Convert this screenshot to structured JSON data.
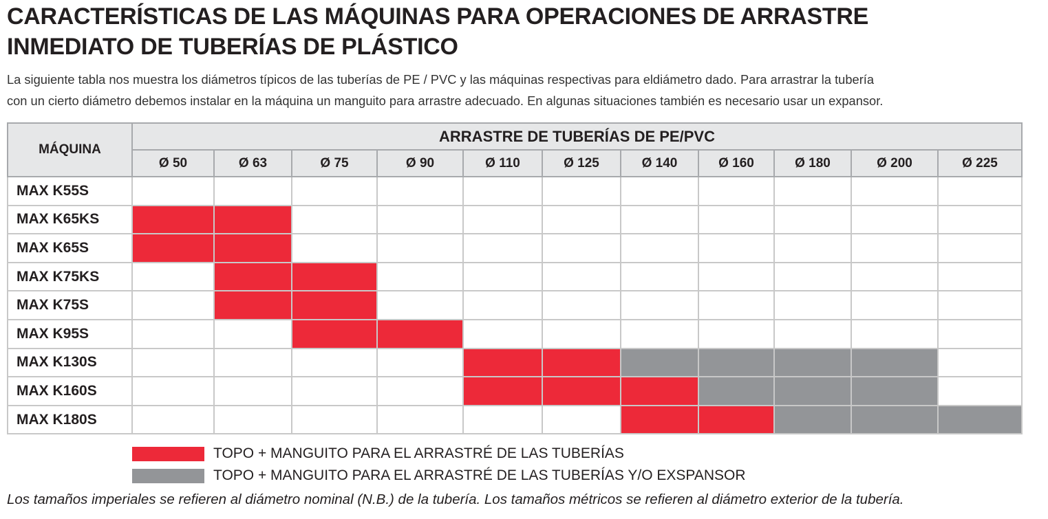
{
  "title_lines": [
    "CARACTERÍSTICAS DE LAS MÁQUINAS PARA OPERACIONES DE ARRASTRE",
    "INMEDIATO DE TUBERÍAS DE PLÁSTICO"
  ],
  "intro_lines": [
    "La siguiente tabla nos muestra los diámetros típicos de las tuberías de PE / PVC y las máquinas respectivas para eldiámetro dado. Para arrastrar la tubería",
    "con un cierto diámetro debemos instalar en la máquina un manguito para arrastre adecuado. En algunas situaciones también es necesario  usar un expansor."
  ],
  "table": {
    "machine_header": "MÁQUINA",
    "group_header": "ARRASTRE DE TUBERÍAS DE PE/PVC",
    "diameters": [
      "Ø 50",
      "Ø 63",
      "Ø 75",
      "Ø 90",
      "Ø 110",
      "Ø 125",
      "Ø 140",
      "Ø 160",
      "Ø 180",
      "Ø 200",
      "Ø 225"
    ],
    "rows": [
      {
        "machine": "MAX K55S",
        "cells": "..........."
      },
      {
        "machine": "MAX K65KS",
        "cells": "RR........."
      },
      {
        "machine": "MAX K65S",
        "cells": "RR........."
      },
      {
        "machine": "MAX K75KS",
        "cells": ".RR........"
      },
      {
        "machine": "MAX K75S",
        "cells": ".RR........"
      },
      {
        "machine": "MAX K95S",
        "cells": "..RR......."
      },
      {
        "machine": "MAX K130S",
        "cells": "....RRGGGG."
      },
      {
        "machine": "MAX K160S",
        "cells": "....RRRGGG."
      },
      {
        "machine": "MAX K180S",
        "cells": "......RRGGG"
      }
    ],
    "cell_key": {
      "R": "red",
      "G": "gray",
      ".": "empty"
    }
  },
  "legend": [
    {
      "color": "#ed2939",
      "label": "TOPO + MANGUITO PARA EL ARRASTRÉ DE LAS TUBERÍAS"
    },
    {
      "color": "#939598",
      "label": "TOPO + MANGUITO PARA EL ARRASTRÉ DE LAS TUBERÍAS Y/O EXSPANSOR"
    }
  ],
  "footnote": "Los tamaños imperiales se refieren al diámetro nominal (N.B.) de la tubería. Los tamaños métricos se refieren al diámetro exterior de la tubería."
}
